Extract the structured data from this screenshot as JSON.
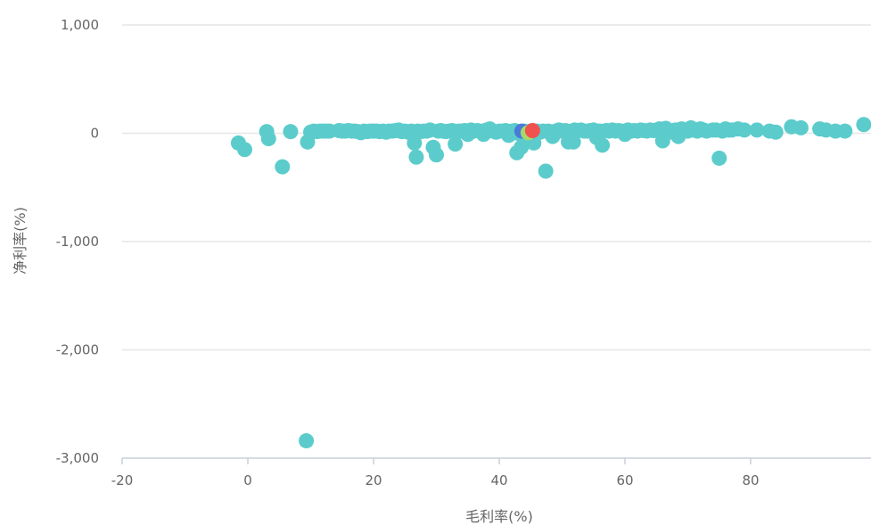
{
  "chart_data": {
    "type": "scatter",
    "xlabel": "毛利率(%)",
    "ylabel": "净利率(%)",
    "xlim": [
      -20,
      100
    ],
    "ylim": [
      -3000,
      1000
    ],
    "x_ticks": [
      {
        "value": -20,
        "label": "-20"
      },
      {
        "value": 0,
        "label": "0"
      },
      {
        "value": 20,
        "label": "20"
      },
      {
        "value": 40,
        "label": "40"
      },
      {
        "value": 60,
        "label": "60"
      },
      {
        "value": 80,
        "label": "80"
      }
    ],
    "y_ticks": [
      {
        "value": 1000,
        "label": "1,000"
      },
      {
        "value": 0,
        "label": "0"
      },
      {
        "value": -1000,
        "label": "-1,000"
      },
      {
        "value": -2000,
        "label": "-2,000"
      },
      {
        "value": -3000,
        "label": "-3,000"
      }
    ],
    "grid": "horizontal",
    "colors": {
      "main": "#5bcccb",
      "blue": "#4a7bd9",
      "green": "#a6d96a",
      "red": "#f0524f",
      "grid": "#e6e6e6",
      "axis": "#c8d0d8",
      "text": "#666666"
    },
    "series": [
      {
        "color": "#5bcccb",
        "points": [
          [
            -1.5,
            -90
          ],
          [
            -0.5,
            -150
          ],
          [
            3,
            15
          ],
          [
            3.3,
            -50
          ],
          [
            5.5,
            -310
          ],
          [
            6.8,
            15
          ],
          [
            9.3,
            -2840
          ],
          [
            9.5,
            -80
          ],
          [
            10,
            10
          ],
          [
            10.5,
            20
          ],
          [
            11,
            15
          ],
          [
            11.5,
            20
          ],
          [
            12,
            20
          ],
          [
            12.5,
            20
          ],
          [
            13,
            20
          ],
          [
            14.5,
            25
          ],
          [
            15,
            20
          ],
          [
            15.5,
            20
          ],
          [
            16,
            25
          ],
          [
            16.5,
            20
          ],
          [
            17,
            20
          ],
          [
            17.5,
            15
          ],
          [
            18,
            5
          ],
          [
            18.5,
            20
          ],
          [
            19,
            15
          ],
          [
            19.5,
            20
          ],
          [
            20,
            20
          ],
          [
            20.5,
            20
          ],
          [
            21,
            15
          ],
          [
            21.5,
            20
          ],
          [
            22,
            10
          ],
          [
            22.5,
            20
          ],
          [
            23,
            20
          ],
          [
            23.5,
            25
          ],
          [
            24,
            30
          ],
          [
            24.5,
            15
          ],
          [
            25,
            20
          ],
          [
            25.5,
            10
          ],
          [
            26,
            20
          ],
          [
            26.5,
            -90
          ],
          [
            26.8,
            -220
          ],
          [
            27,
            20
          ],
          [
            27.5,
            15
          ],
          [
            28,
            20
          ],
          [
            28.5,
            20
          ],
          [
            29,
            30
          ],
          [
            29.5,
            -130
          ],
          [
            30,
            -200
          ],
          [
            30.3,
            20
          ],
          [
            30.7,
            25
          ],
          [
            31,
            20
          ],
          [
            31.5,
            15
          ],
          [
            32,
            20
          ],
          [
            32.5,
            25
          ],
          [
            33,
            -100
          ],
          [
            33.5,
            20
          ],
          [
            34,
            20
          ],
          [
            34.5,
            25
          ],
          [
            35,
            -10
          ],
          [
            35.5,
            30
          ],
          [
            36,
            20
          ],
          [
            36.5,
            25
          ],
          [
            37,
            20
          ],
          [
            37.5,
            -10
          ],
          [
            38,
            30
          ],
          [
            38.5,
            40
          ],
          [
            39,
            20
          ],
          [
            39.5,
            10
          ],
          [
            40,
            20
          ],
          [
            40.5,
            20
          ],
          [
            41,
            25
          ],
          [
            41.5,
            -20
          ],
          [
            42,
            20
          ],
          [
            42.5,
            25
          ],
          [
            42.8,
            -180
          ],
          [
            43,
            0
          ],
          [
            43.5,
            -130
          ],
          [
            44,
            20
          ],
          [
            44.5,
            -60
          ],
          [
            45,
            20
          ],
          [
            45.5,
            -90
          ],
          [
            46,
            20
          ],
          [
            46.5,
            10
          ],
          [
            47,
            20
          ],
          [
            47.4,
            -350
          ],
          [
            47.8,
            20
          ],
          [
            48,
            10
          ],
          [
            48.5,
            -30
          ],
          [
            49,
            20
          ],
          [
            49.5,
            30
          ],
          [
            50,
            20
          ],
          [
            50.5,
            25
          ],
          [
            51,
            -80
          ],
          [
            51.5,
            20
          ],
          [
            51.8,
            -80
          ],
          [
            52,
            30
          ],
          [
            52.5,
            25
          ],
          [
            53,
            30
          ],
          [
            53.5,
            20
          ],
          [
            54,
            20
          ],
          [
            54.5,
            25
          ],
          [
            55,
            30
          ],
          [
            55.5,
            -40
          ],
          [
            56,
            20
          ],
          [
            56.4,
            -110
          ],
          [
            57,
            25
          ],
          [
            57.5,
            20
          ],
          [
            58,
            30
          ],
          [
            58.5,
            20
          ],
          [
            59,
            25
          ],
          [
            59.5,
            20
          ],
          [
            60,
            -10
          ],
          [
            60.5,
            30
          ],
          [
            61,
            20
          ],
          [
            61.5,
            25
          ],
          [
            62,
            20
          ],
          [
            62.5,
            30
          ],
          [
            63,
            25
          ],
          [
            63.5,
            20
          ],
          [
            64,
            30
          ],
          [
            64.5,
            25
          ],
          [
            65,
            30
          ],
          [
            65.5,
            40
          ],
          [
            66,
            -70
          ],
          [
            66.5,
            45
          ],
          [
            67,
            20
          ],
          [
            67.5,
            10
          ],
          [
            68,
            30
          ],
          [
            68.5,
            -30
          ],
          [
            69,
            40
          ],
          [
            69.5,
            30
          ],
          [
            70,
            20
          ],
          [
            70.5,
            50
          ],
          [
            71,
            30
          ],
          [
            71.5,
            20
          ],
          [
            72,
            40
          ],
          [
            72.5,
            30
          ],
          [
            73,
            20
          ],
          [
            74,
            30
          ],
          [
            74.5,
            30
          ],
          [
            75,
            -230
          ],
          [
            75.5,
            20
          ],
          [
            76,
            40
          ],
          [
            76.5,
            30
          ],
          [
            77,
            30
          ],
          [
            78,
            40
          ],
          [
            79,
            30
          ],
          [
            81,
            30
          ],
          [
            83,
            20
          ],
          [
            84,
            10
          ],
          [
            86.5,
            60
          ],
          [
            88,
            50
          ],
          [
            91,
            40
          ],
          [
            92,
            30
          ],
          [
            93.5,
            20
          ],
          [
            95,
            20
          ],
          [
            98,
            80
          ]
        ]
      },
      {
        "color": "#4a7bd9",
        "points": [
          [
            43.6,
            20
          ]
        ]
      },
      {
        "color": "#a6d96a",
        "points": [
          [
            44.6,
            5
          ]
        ]
      },
      {
        "color": "#f0524f",
        "points": [
          [
            45.3,
            25
          ]
        ]
      }
    ]
  }
}
